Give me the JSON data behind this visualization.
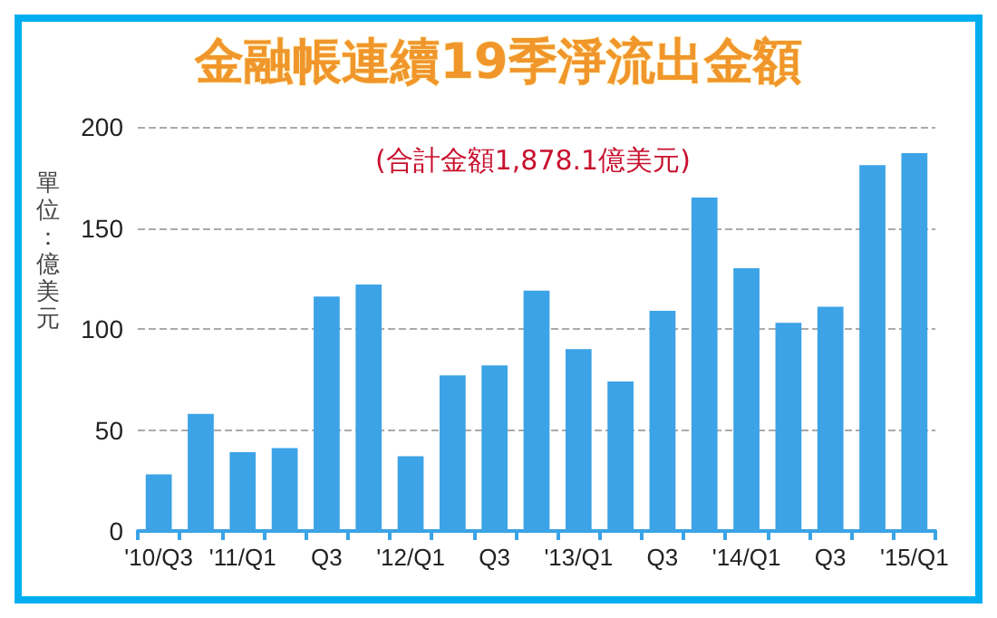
{
  "chart_data": {
    "type": "bar",
    "title": "金融帳連續19季淨流出金額",
    "subtitle": "(合計金額1,878.1億美元)",
    "ylabel": "單位：億美元",
    "categories": [
      "'10/Q3",
      null,
      "'11/Q1",
      null,
      "Q3",
      null,
      "'12/Q1",
      null,
      "Q3",
      null,
      "'13/Q1",
      null,
      "Q3",
      null,
      "'14/Q1",
      null,
      "Q3",
      null,
      "'15/Q1"
    ],
    "values": [
      28,
      58,
      39,
      41,
      116,
      122,
      37,
      77,
      82,
      119,
      90,
      74,
      109,
      165,
      130,
      103,
      111,
      181,
      187
    ],
    "color": "#3ba3e6",
    "ylim": [
      0,
      200
    ],
    "yticks": [
      0,
      50,
      100,
      150,
      200
    ],
    "grid": "y"
  }
}
